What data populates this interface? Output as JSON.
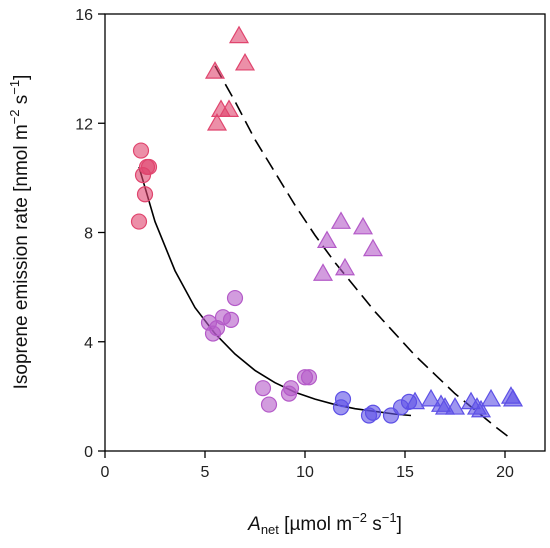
{
  "chart_data": {
    "type": "scatter",
    "xlabel": {
      "main": "A",
      "sub": "net",
      "units": " [µmol m",
      "exp1": "−2",
      "mid": " s",
      "exp2": "−1",
      "end": "]"
    },
    "ylabel": {
      "main": "Isoprene emission rate [nmol m",
      "exp1": "−2",
      "mid": " s",
      "exp2": "−1",
      "end": "]"
    },
    "xlim": [
      0,
      22
    ],
    "ylim": [
      0,
      16
    ],
    "xticks": [
      0,
      5,
      10,
      15,
      20
    ],
    "yticks": [
      0,
      4,
      8,
      12,
      16
    ],
    "grid": false,
    "colors": {
      "red": "#e0456e",
      "purple": "#b45ac8",
      "blue": "#5d50e6",
      "axis": "#000000"
    },
    "series": [
      {
        "marker": "circle",
        "points": [
          {
            "x": 1.8,
            "y": 11.0,
            "c": "red"
          },
          {
            "x": 1.9,
            "y": 10.1,
            "c": "red"
          },
          {
            "x": 2.0,
            "y": 9.4,
            "c": "red"
          },
          {
            "x": 2.1,
            "y": 10.4,
            "c": "red"
          },
          {
            "x": 2.2,
            "y": 10.4,
            "c": "red"
          },
          {
            "x": 1.7,
            "y": 8.4,
            "c": "red"
          },
          {
            "x": 5.2,
            "y": 4.7,
            "c": "purple"
          },
          {
            "x": 5.4,
            "y": 4.3,
            "c": "purple"
          },
          {
            "x": 5.6,
            "y": 4.5,
            "c": "purple"
          },
          {
            "x": 5.9,
            "y": 4.9,
            "c": "purple"
          },
          {
            "x": 6.3,
            "y": 4.8,
            "c": "purple"
          },
          {
            "x": 6.5,
            "y": 5.6,
            "c": "purple"
          },
          {
            "x": 7.9,
            "y": 2.3,
            "c": "purple"
          },
          {
            "x": 8.2,
            "y": 1.7,
            "c": "purple"
          },
          {
            "x": 9.2,
            "y": 2.1,
            "c": "purple"
          },
          {
            "x": 9.3,
            "y": 2.3,
            "c": "purple"
          },
          {
            "x": 10.0,
            "y": 2.7,
            "c": "purple"
          },
          {
            "x": 10.2,
            "y": 2.7,
            "c": "purple"
          },
          {
            "x": 11.8,
            "y": 1.6,
            "c": "blue"
          },
          {
            "x": 11.9,
            "y": 1.9,
            "c": "blue"
          },
          {
            "x": 13.2,
            "y": 1.3,
            "c": "blue"
          },
          {
            "x": 13.4,
            "y": 1.4,
            "c": "blue"
          },
          {
            "x": 14.3,
            "y": 1.3,
            "c": "blue"
          },
          {
            "x": 14.8,
            "y": 1.6,
            "c": "blue"
          },
          {
            "x": 15.2,
            "y": 1.8,
            "c": "blue"
          }
        ]
      },
      {
        "marker": "triangle",
        "points": [
          {
            "x": 5.5,
            "y": 13.9,
            "c": "red"
          },
          {
            "x": 5.6,
            "y": 12.0,
            "c": "red"
          },
          {
            "x": 5.8,
            "y": 12.5,
            "c": "red"
          },
          {
            "x": 6.2,
            "y": 12.5,
            "c": "red"
          },
          {
            "x": 6.7,
            "y": 15.2,
            "c": "red"
          },
          {
            "x": 7.0,
            "y": 14.2,
            "c": "red"
          },
          {
            "x": 10.9,
            "y": 6.5,
            "c": "purple"
          },
          {
            "x": 11.1,
            "y": 7.7,
            "c": "purple"
          },
          {
            "x": 11.8,
            "y": 8.4,
            "c": "purple"
          },
          {
            "x": 12.0,
            "y": 6.7,
            "c": "purple"
          },
          {
            "x": 12.9,
            "y": 8.2,
            "c": "purple"
          },
          {
            "x": 13.4,
            "y": 7.4,
            "c": "purple"
          },
          {
            "x": 15.5,
            "y": 1.8,
            "c": "blue"
          },
          {
            "x": 16.3,
            "y": 1.9,
            "c": "blue"
          },
          {
            "x": 16.8,
            "y": 1.7,
            "c": "blue"
          },
          {
            "x": 17.0,
            "y": 1.6,
            "c": "blue"
          },
          {
            "x": 17.5,
            "y": 1.6,
            "c": "blue"
          },
          {
            "x": 18.3,
            "y": 1.8,
            "c": "blue"
          },
          {
            "x": 18.6,
            "y": 1.6,
            "c": "blue"
          },
          {
            "x": 18.8,
            "y": 1.5,
            "c": "blue"
          },
          {
            "x": 19.3,
            "y": 1.9,
            "c": "blue"
          },
          {
            "x": 20.3,
            "y": 2.0,
            "c": "blue"
          },
          {
            "x": 20.4,
            "y": 1.9,
            "c": "blue"
          }
        ]
      }
    ],
    "fits": [
      {
        "style": "solid",
        "x": [
          1.7,
          2.5,
          3.5,
          4.5,
          5.5,
          6.5,
          7.5,
          8.5,
          9.5,
          10.5,
          11.5,
          12.5,
          13.5,
          14.5,
          15.3
        ],
        "y": [
          10.4,
          8.4,
          6.6,
          5.25,
          4.3,
          3.55,
          2.95,
          2.5,
          2.15,
          1.9,
          1.7,
          1.55,
          1.45,
          1.35,
          1.3
        ]
      },
      {
        "style": "dashed",
        "x": [
          5.5,
          6.5,
          7.5,
          8.5,
          9.5,
          10.5,
          11.5,
          12.5,
          13.5,
          14.5,
          15.5,
          16.5,
          17.5,
          18.5,
          19.5,
          20.3
        ],
        "y": [
          14.1,
          12.8,
          11.4,
          10.2,
          9.0,
          7.9,
          6.9,
          6.0,
          5.1,
          4.3,
          3.5,
          2.8,
          2.1,
          1.5,
          0.9,
          0.45
        ]
      }
    ]
  }
}
